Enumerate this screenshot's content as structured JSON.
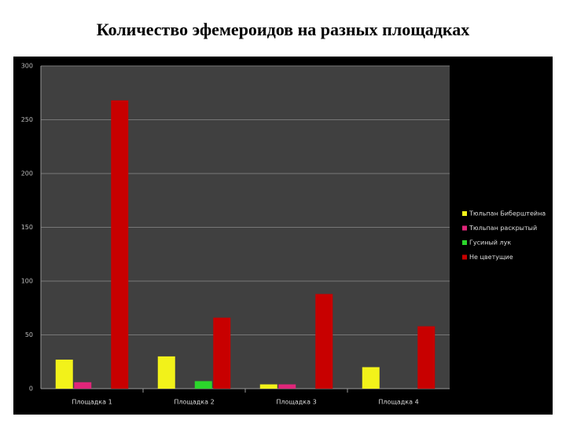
{
  "chart_data": {
    "type": "bar",
    "title": "Количество эфемероидов на разных площадках",
    "categories": [
      "Площадка 1",
      "Площадка 2",
      "Площадка 3",
      "Площадка 4"
    ],
    "series": [
      {
        "name": "Тюльпан Биберштейна",
        "color": "#f2f21a",
        "values": [
          27,
          30,
          4,
          20
        ]
      },
      {
        "name": "Тюльпан раскрытый",
        "color": "#e0267a",
        "values": [
          6,
          0,
          4,
          0
        ]
      },
      {
        "name": "Гусиный лук",
        "color": "#2bd62b",
        "values": [
          0,
          7,
          0,
          0
        ]
      },
      {
        "name": "Не цветущие",
        "color": "#c80000",
        "values": [
          268,
          66,
          88,
          58
        ]
      }
    ],
    "ylim": [
      0,
      300
    ],
    "yticks": [
      0,
      50,
      100,
      150,
      200,
      250,
      300
    ],
    "grid": true,
    "legend": "right"
  }
}
